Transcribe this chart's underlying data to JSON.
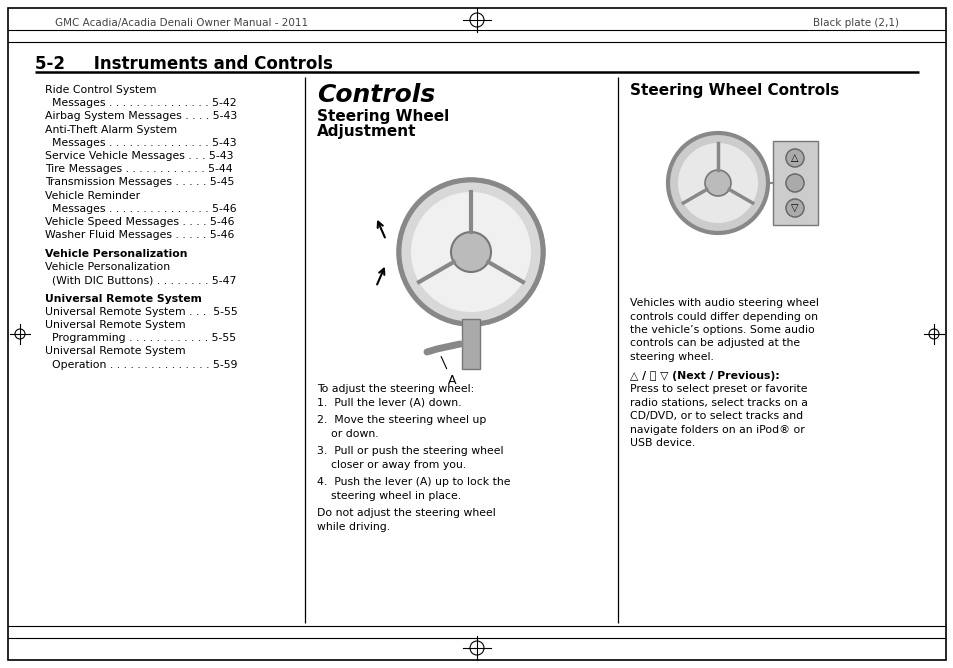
{
  "page_bg": "#ffffff",
  "border_color": "#000000",
  "header_left": "GMC Acadia/Acadia Denali Owner Manual - 2011",
  "header_right": "Black plate (2,1)",
  "section_title": "5-2     Instruments and Controls",
  "toc_lines": [
    {
      "text": "Ride Control System",
      "bold": false,
      "indent": 0
    },
    {
      "text": "  Messages . . . . . . . . . . . . . . . 5-42",
      "bold": false,
      "indent": 1
    },
    {
      "text": "Airbag System Messages . . . . 5-43",
      "bold": false,
      "indent": 0
    },
    {
      "text": "Anti-Theft Alarm System",
      "bold": false,
      "indent": 0
    },
    {
      "text": "  Messages . . . . . . . . . . . . . . . 5-43",
      "bold": false,
      "indent": 1
    },
    {
      "text": "Service Vehicle Messages . . . 5-43",
      "bold": false,
      "indent": 0
    },
    {
      "text": "Tire Messages . . . . . . . . . . . . 5-44",
      "bold": false,
      "indent": 0
    },
    {
      "text": "Transmission Messages . . . . . 5-45",
      "bold": false,
      "indent": 0
    },
    {
      "text": "Vehicle Reminder",
      "bold": false,
      "indent": 0
    },
    {
      "text": "  Messages . . . . . . . . . . . . . . . 5-46",
      "bold": false,
      "indent": 1
    },
    {
      "text": "Vehicle Speed Messages . . . . 5-46",
      "bold": false,
      "indent": 0
    },
    {
      "text": "Washer Fluid Messages . . . . . 5-46",
      "bold": false,
      "indent": 0
    },
    {
      "text": "",
      "bold": false,
      "indent": 0
    },
    {
      "text": "Vehicle Personalization",
      "bold": true,
      "indent": 0
    },
    {
      "text": "Vehicle Personalization",
      "bold": false,
      "indent": 1
    },
    {
      "text": "  (With DIC Buttons) . . . . . . . . 5-47",
      "bold": false,
      "indent": 1
    },
    {
      "text": "",
      "bold": false,
      "indent": 0
    },
    {
      "text": "Universal Remote System",
      "bold": true,
      "indent": 0
    },
    {
      "text": "Universal Remote System . . .  5-55",
      "bold": false,
      "indent": 1
    },
    {
      "text": "Universal Remote System",
      "bold": false,
      "indent": 1
    },
    {
      "text": "  Programming . . . . . . . . . . . . 5-55",
      "bold": false,
      "indent": 1
    },
    {
      "text": "Universal Remote System",
      "bold": false,
      "indent": 1
    },
    {
      "text": "  Operation . . . . . . . . . . . . . . . 5-59",
      "bold": false,
      "indent": 1
    }
  ],
  "col2_title": "Controls",
  "col2_subtitle1": "Steering Wheel",
  "col2_subtitle2": "Adjustment",
  "col2_steps": [
    "To adjust the steering wheel:",
    "1.  Pull the lever (A) down.",
    "",
    "2.  Move the steering wheel up",
    "    or down.",
    "",
    "3.  Pull or push the steering wheel",
    "    closer or away from you.",
    "",
    "4.  Push the lever (A) up to lock the",
    "    steering wheel in place.",
    "",
    "Do not adjust the steering wheel",
    "while driving."
  ],
  "col3_title": "Steering Wheel Controls",
  "col3_lines": [
    {
      "text": "Vehicles with audio steering wheel",
      "bold": false
    },
    {
      "text": "controls could differ depending on",
      "bold": false
    },
    {
      "text": "the vehicle’s options. Some audio",
      "bold": false
    },
    {
      "text": "controls can be adjusted at the",
      "bold": false
    },
    {
      "text": "steering wheel.",
      "bold": false
    },
    {
      "text": "",
      "bold": false
    },
    {
      "text": "△ / Ⓟ ▽ (Next / Previous):",
      "bold": true
    },
    {
      "text": "Press to select preset or favorite",
      "bold": false
    },
    {
      "text": "radio stations, select tracks on a",
      "bold": false
    },
    {
      "text": "CD/DVD, or to select tracks and",
      "bold": false
    },
    {
      "text": "navigate folders on an iPod® or",
      "bold": false
    },
    {
      "text": "USB device.",
      "bold": false
    }
  ]
}
